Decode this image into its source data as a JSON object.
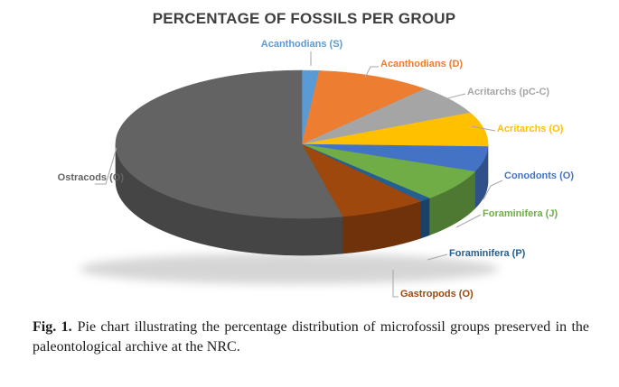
{
  "title": "PERCENTAGE OF FOSSILS PER GROUP",
  "caption": {
    "label": "Fig. 1.",
    "text": "Pie chart illustrating the percentage distribution of microfossil groups preserved in the paleontological archive at the NRC."
  },
  "chart_data": {
    "type": "pie",
    "title": "PERCENTAGE OF FOSSILS PER GROUP",
    "unit": "percent",
    "effect_3d": true,
    "start_angle_deg": 0,
    "direction": "clockwise",
    "legend_position": "callout-labels",
    "title_color": "#404040",
    "leader_color": "#A6A6A6",
    "slices": [
      {
        "label": "Acanthodians (S)",
        "value": 1.5,
        "color": "#5B9BD5"
      },
      {
        "label": "Acanthodians (D)",
        "value": 10,
        "color": "#ED7D31"
      },
      {
        "label": "Acritarchs (pC-C)",
        "value": 6.5,
        "color": "#A5A5A5"
      },
      {
        "label": "Acritarchs (O)",
        "value": 7.5,
        "color": "#FFC000"
      },
      {
        "label": "Conodonts (O)",
        "value": 5.5,
        "color": "#4472C4"
      },
      {
        "label": "Foraminifera (J)",
        "value": 7,
        "color": "#70AD47"
      },
      {
        "label": "Foraminifera (P)",
        "value": 1,
        "color": "#255E91"
      },
      {
        "label": "Gastropods (O)",
        "value": 7.5,
        "color": "#9E480E"
      },
      {
        "label": "Ostracods (O)",
        "value": 53.5,
        "color": "#636363"
      }
    ]
  }
}
